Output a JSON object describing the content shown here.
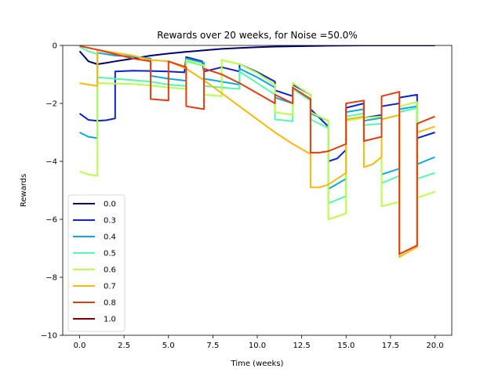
{
  "chart_data": {
    "type": "line",
    "title": "Rewards over 20 weeks, for Noise =50.0%",
    "xlabel": "Time (weeks)",
    "ylabel": "Rewards",
    "xlim": [
      -0.95,
      20.95
    ],
    "ylim": [
      -10,
      0
    ],
    "xticks": [
      0,
      2.5,
      5,
      7.5,
      10,
      12.5,
      15,
      17.5,
      20
    ],
    "xtick_labels": [
      "0.0",
      "2.5",
      "5.0",
      "7.5",
      "10.0",
      "12.5",
      "15.0",
      "17.5",
      "20.0"
    ],
    "yticks": [
      0,
      -2,
      -4,
      -6,
      -8,
      -10
    ],
    "ytick_labels": [
      "0",
      "−2",
      "−4",
      "−6",
      "−8",
      "−10"
    ],
    "grid": false,
    "legend_position": "lower-left",
    "series": [
      {
        "name": "0.0",
        "color": "#00006f",
        "points": [
          [
            0,
            -0.2
          ],
          [
            0.5,
            -0.55
          ],
          [
            1,
            -0.65
          ],
          [
            1.5,
            -0.6
          ],
          [
            2,
            -0.55
          ],
          [
            3,
            -0.45
          ],
          [
            4,
            -0.35
          ],
          [
            5,
            -0.28
          ],
          [
            6,
            -0.22
          ],
          [
            7,
            -0.17
          ],
          [
            8,
            -0.12
          ],
          [
            9,
            -0.09
          ],
          [
            10,
            -0.06
          ],
          [
            11,
            -0.04
          ],
          [
            12,
            -0.03
          ],
          [
            13,
            -0.02
          ],
          [
            14,
            -0.01
          ],
          [
            16,
            0
          ],
          [
            20,
            0
          ]
        ]
      },
      {
        "name": "0.3",
        "color": "#0a22cf",
        "points": [
          [
            0,
            -2.35
          ],
          [
            0.5,
            -2.57
          ],
          [
            1,
            -2.6
          ],
          [
            1.5,
            -2.58
          ],
          [
            2,
            -2.52
          ],
          [
            2,
            -0.9
          ],
          [
            3,
            -0.87
          ],
          [
            4,
            -0.88
          ],
          [
            5,
            -0.9
          ],
          [
            5.9,
            -0.93
          ],
          [
            6,
            -0.4
          ],
          [
            6.9,
            -0.55
          ],
          [
            7,
            -0.9
          ],
          [
            8,
            -0.75
          ],
          [
            9,
            -0.9
          ],
          [
            9,
            -0.65
          ],
          [
            10,
            -0.92
          ],
          [
            11,
            -1.25
          ],
          [
            11,
            -1.55
          ],
          [
            12,
            -1.75
          ],
          [
            12,
            -1.35
          ],
          [
            13,
            -1.7
          ],
          [
            13,
            -2.2
          ],
          [
            13.5,
            -2.5
          ],
          [
            14,
            -2.8
          ],
          [
            14,
            -4
          ],
          [
            14.5,
            -3.9
          ],
          [
            15,
            -3.6
          ],
          [
            15,
            -2.15
          ],
          [
            16,
            -2.0
          ],
          [
            16,
            -2.5
          ],
          [
            17,
            -2.4
          ],
          [
            17,
            -2.1
          ],
          [
            18,
            -2.0
          ],
          [
            18,
            -1.8
          ],
          [
            19,
            -1.7
          ],
          [
            19,
            -3.2
          ],
          [
            20,
            -3.0
          ]
        ]
      },
      {
        "name": "0.4",
        "color": "#0aa8e8",
        "points": [
          [
            0,
            -3.0
          ],
          [
            0.5,
            -3.15
          ],
          [
            1,
            -3.2
          ],
          [
            1,
            -0.25
          ],
          [
            2,
            -0.35
          ],
          [
            3,
            -0.38
          ],
          [
            4,
            -0.45
          ],
          [
            4,
            -1.05
          ],
          [
            5,
            -1.15
          ],
          [
            6,
            -1.22
          ],
          [
            6,
            -0.45
          ],
          [
            7,
            -0.6
          ],
          [
            7,
            -1.15
          ],
          [
            8,
            -1.25
          ],
          [
            9,
            -1.35
          ],
          [
            9,
            -0.8
          ],
          [
            10,
            -1.1
          ],
          [
            11,
            -1.45
          ],
          [
            11,
            -1.8
          ],
          [
            12,
            -2.0
          ],
          [
            12,
            -1.5
          ],
          [
            13,
            -1.9
          ],
          [
            13,
            -2.35
          ],
          [
            14,
            -2.6
          ],
          [
            14,
            -4.95
          ],
          [
            15,
            -4.6
          ],
          [
            15,
            -2.3
          ],
          [
            16,
            -2.2
          ],
          [
            16,
            -2.6
          ],
          [
            17,
            -2.5
          ],
          [
            17,
            -4.45
          ],
          [
            18,
            -4.25
          ],
          [
            18,
            -2.2
          ],
          [
            19,
            -2.1
          ],
          [
            19,
            -4.1
          ],
          [
            20,
            -3.85
          ]
        ]
      },
      {
        "name": "0.5",
        "color": "#52fbab",
        "points": [
          [
            0,
            -0.05
          ],
          [
            0.5,
            -0.2
          ],
          [
            1,
            -0.3
          ],
          [
            1,
            -1.1
          ],
          [
            2,
            -1.15
          ],
          [
            3,
            -1.2
          ],
          [
            4,
            -1.25
          ],
          [
            5,
            -1.35
          ],
          [
            6,
            -1.4
          ],
          [
            6,
            -0.55
          ],
          [
            7,
            -0.7
          ],
          [
            7,
            -1.4
          ],
          [
            8,
            -1.45
          ],
          [
            9,
            -1.5
          ],
          [
            9,
            -0.9
          ],
          [
            10,
            -1.3
          ],
          [
            11,
            -1.7
          ],
          [
            11,
            -2.55
          ],
          [
            12,
            -2.62
          ],
          [
            12,
            -1.5
          ],
          [
            13,
            -1.9
          ],
          [
            13,
            -2.55
          ],
          [
            14,
            -2.85
          ],
          [
            14,
            -5.45
          ],
          [
            15,
            -5.2
          ],
          [
            15,
            -2.45
          ],
          [
            16,
            -2.35
          ],
          [
            16,
            -2.75
          ],
          [
            17,
            -2.7
          ],
          [
            17,
            -4.75
          ],
          [
            18,
            -4.5
          ],
          [
            18,
            -2.3
          ],
          [
            19,
            -2.15
          ],
          [
            19,
            -4.6
          ],
          [
            20,
            -4.4
          ]
        ]
      },
      {
        "name": "0.6",
        "color": "#b9fe47",
        "points": [
          [
            0,
            -4.35
          ],
          [
            0.5,
            -4.45
          ],
          [
            1,
            -4.5
          ],
          [
            1,
            -1.3
          ],
          [
            2,
            -1.32
          ],
          [
            3,
            -1.33
          ],
          [
            4,
            -1.38
          ],
          [
            5,
            -1.45
          ],
          [
            6,
            -1.5
          ],
          [
            6,
            -0.5
          ],
          [
            7,
            -0.68
          ],
          [
            7,
            -1.7
          ],
          [
            8,
            -1.75
          ],
          [
            8,
            -0.5
          ],
          [
            9,
            -0.65
          ],
          [
            10,
            -0.95
          ],
          [
            11,
            -1.35
          ],
          [
            11,
            -2.3
          ],
          [
            12,
            -2.4
          ],
          [
            12,
            -1.3
          ],
          [
            13,
            -1.7
          ],
          [
            13,
            -2.3
          ],
          [
            14,
            -2.6
          ],
          [
            14,
            -6.0
          ],
          [
            15,
            -5.8
          ],
          [
            15,
            -2.6
          ],
          [
            16,
            -2.5
          ],
          [
            16,
            -2.5
          ],
          [
            17,
            -2.45
          ],
          [
            17,
            -5.55
          ],
          [
            18,
            -5.4
          ],
          [
            18,
            -2.1
          ],
          [
            19,
            -1.95
          ],
          [
            19,
            -5.25
          ],
          [
            20,
            -5.05
          ]
        ]
      },
      {
        "name": "0.7",
        "color": "#f9b80d",
        "points": [
          [
            0,
            -1.3
          ],
          [
            0.5,
            -1.35
          ],
          [
            1,
            -1.4
          ],
          [
            1,
            -0.15
          ],
          [
            2,
            -0.25
          ],
          [
            3,
            -0.35
          ],
          [
            4,
            -0.5
          ],
          [
            5,
            -0.55
          ],
          [
            6,
            -0.8
          ],
          [
            7,
            -1.2
          ],
          [
            8,
            -1.65
          ],
          [
            9,
            -2.1
          ],
          [
            10,
            -2.55
          ],
          [
            11,
            -3.0
          ],
          [
            12,
            -3.4
          ],
          [
            13,
            -3.75
          ],
          [
            13,
            -4.9
          ],
          [
            13.5,
            -4.9
          ],
          [
            14,
            -4.8
          ],
          [
            15,
            -4.4
          ],
          [
            15,
            -2.55
          ],
          [
            16,
            -2.45
          ],
          [
            16,
            -4.2
          ],
          [
            16.5,
            -4.1
          ],
          [
            17,
            -3.85
          ],
          [
            17,
            -2.55
          ],
          [
            18,
            -2.4
          ],
          [
            18,
            -7.3
          ],
          [
            19,
            -6.95
          ],
          [
            19,
            -3.0
          ],
          [
            20,
            -2.8
          ]
        ]
      },
      {
        "name": "0.8",
        "color": "#e33d0d",
        "points": [
          [
            0,
            -0.02
          ],
          [
            1,
            -0.15
          ],
          [
            2,
            -0.3
          ],
          [
            3,
            -0.45
          ],
          [
            4,
            -0.55
          ],
          [
            4,
            -1.85
          ],
          [
            5,
            -1.9
          ],
          [
            5,
            -0.55
          ],
          [
            6,
            -0.75
          ],
          [
            6,
            -2.1
          ],
          [
            7,
            -2.2
          ],
          [
            7,
            -0.8
          ],
          [
            8,
            -1.0
          ],
          [
            9,
            -1.3
          ],
          [
            10,
            -1.65
          ],
          [
            11,
            -2.0
          ],
          [
            11,
            -1.7
          ],
          [
            12,
            -2.0
          ],
          [
            12,
            -1.45
          ],
          [
            13,
            -1.85
          ],
          [
            13,
            -3.7
          ],
          [
            13.5,
            -3.7
          ],
          [
            14,
            -3.65
          ],
          [
            15,
            -3.4
          ],
          [
            15,
            -2.0
          ],
          [
            16,
            -1.9
          ],
          [
            16,
            -3.3
          ],
          [
            17,
            -3.15
          ],
          [
            17,
            -1.75
          ],
          [
            18,
            -1.6
          ],
          [
            18,
            -7.2
          ],
          [
            19,
            -6.9
          ],
          [
            19,
            -2.7
          ],
          [
            20,
            -2.45
          ]
        ]
      },
      {
        "name": "1.0",
        "color": "#7f0000",
        "points": []
      }
    ]
  }
}
